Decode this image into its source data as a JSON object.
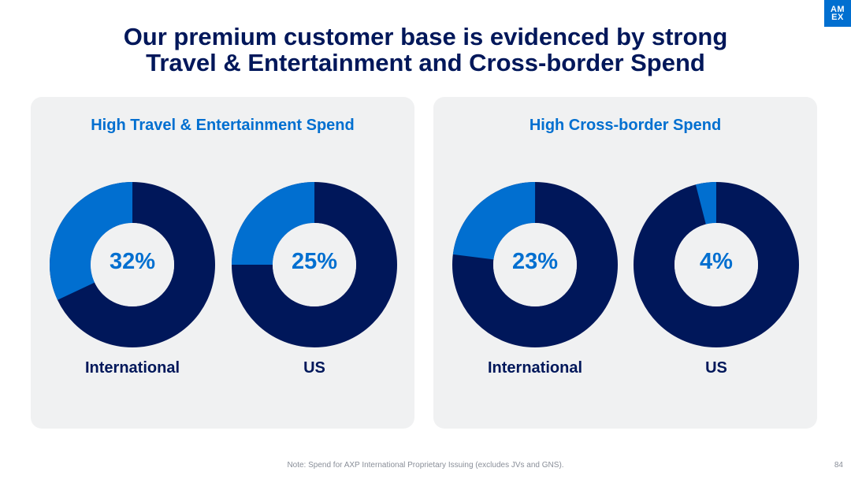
{
  "logo": {
    "line1": "AM",
    "line2": "EX"
  },
  "title": {
    "line1": "Our premium customer base is evidenced by strong",
    "line2": "Travel & Entertainment and Cross-border Spend"
  },
  "colors": {
    "highlight": "#016fd0",
    "remainder": "#00175a",
    "panel": "#f0f1f2"
  },
  "chart_data": [
    {
      "type": "pie",
      "title": "High Travel & Entertainment Spend",
      "charts": [
        {
          "label": "International",
          "value": 32,
          "display": "32%"
        },
        {
          "label": "US",
          "value": 25,
          "display": "25%"
        }
      ]
    },
    {
      "type": "pie",
      "title": "High Cross-border Spend",
      "charts": [
        {
          "label": "International",
          "value": 23,
          "display": "23%"
        },
        {
          "label": "US",
          "value": 4,
          "display": "4%"
        }
      ]
    }
  ],
  "footnote": "Note: Spend for AXP International Proprietary Issuing (excludes JVs and GNS).",
  "page_number": "84"
}
